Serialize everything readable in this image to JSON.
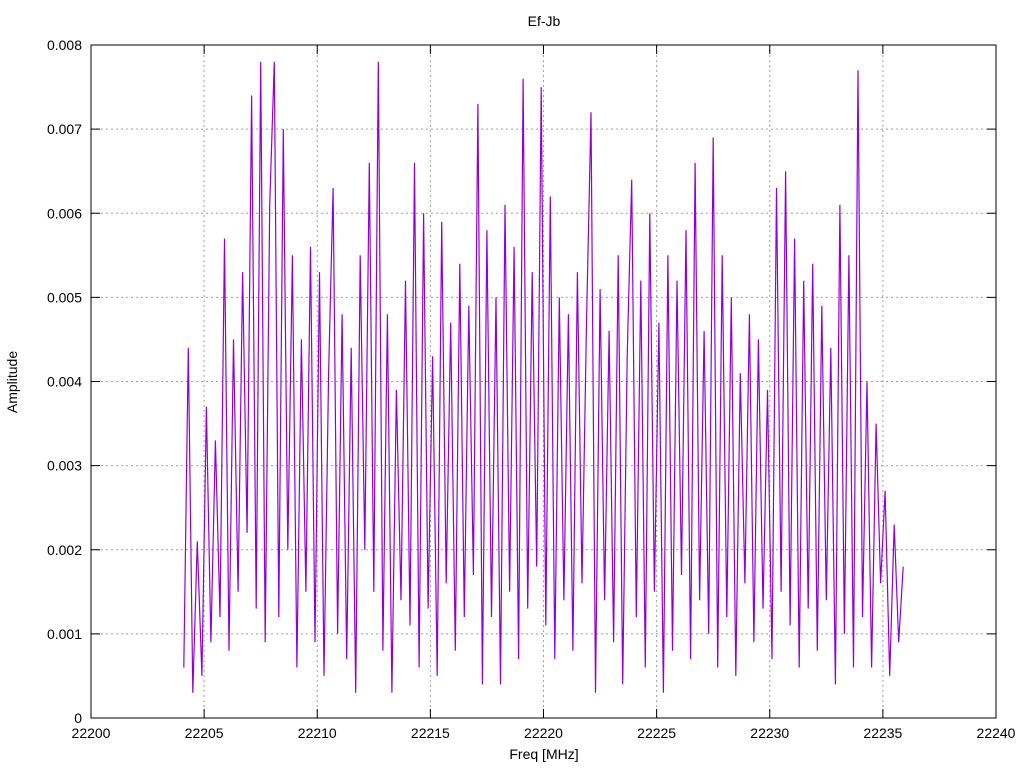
{
  "chart_data": {
    "type": "line",
    "title": "Ef-Jb",
    "xlabel": "Freq [MHz]",
    "ylabel": "Amplitude",
    "xlim": [
      22200,
      22240
    ],
    "ylim": [
      0,
      0.008
    ],
    "xticks": [
      "22200",
      "22205",
      "22210",
      "22215",
      "22220",
      "22225",
      "22230",
      "22235",
      "22240"
    ],
    "yticks": [
      "0",
      "0.001",
      "0.002",
      "0.003",
      "0.004",
      "0.005",
      "0.006",
      "0.007",
      "0.008"
    ],
    "grid": true,
    "legend": "none",
    "series": [
      {
        "name": "Ef-Jb",
        "color": "#9400d3",
        "x_start": 22204.1,
        "x_step": 0.2,
        "y": [
          0.0006,
          0.0044,
          0.0003,
          0.0021,
          0.0005,
          0.0037,
          0.0009,
          0.0033,
          0.0012,
          0.0057,
          0.0008,
          0.0045,
          0.0015,
          0.0053,
          0.0022,
          0.0074,
          0.0013,
          0.0078,
          0.0009,
          0.0061,
          0.0078,
          0.0012,
          0.007,
          0.002,
          0.0055,
          0.0006,
          0.0045,
          0.0015,
          0.0056,
          0.0009,
          0.0053,
          0.0005,
          0.0041,
          0.0063,
          0.001,
          0.0048,
          0.0007,
          0.0044,
          0.0003,
          0.0055,
          0.002,
          0.0066,
          0.0015,
          0.0078,
          0.0008,
          0.0048,
          0.0003,
          0.0039,
          0.0014,
          0.0052,
          0.0011,
          0.0066,
          0.0006,
          0.006,
          0.0013,
          0.0043,
          0.0005,
          0.0059,
          0.0016,
          0.0047,
          0.0008,
          0.0054,
          0.0012,
          0.0049,
          0.0017,
          0.0073,
          0.0004,
          0.0058,
          0.0012,
          0.005,
          0.0004,
          0.0061,
          0.0015,
          0.0056,
          0.0007,
          0.0076,
          0.0013,
          0.0053,
          0.0018,
          0.0075,
          0.0011,
          0.0062,
          0.0007,
          0.005,
          0.0014,
          0.0048,
          0.0008,
          0.0053,
          0.0016,
          0.0047,
          0.0072,
          0.0003,
          0.0051,
          0.0014,
          0.0046,
          0.0009,
          0.0055,
          0.0004,
          0.0043,
          0.0064,
          0.0012,
          0.0052,
          0.0006,
          0.006,
          0.0015,
          0.0047,
          0.0003,
          0.0055,
          0.0008,
          0.0052,
          0.0017,
          0.0058,
          0.0007,
          0.0066,
          0.0014,
          0.0046,
          0.001,
          0.0069,
          0.0006,
          0.0055,
          0.0012,
          0.005,
          0.0005,
          0.0041,
          0.0016,
          0.0048,
          0.0009,
          0.0045,
          0.0013,
          0.0039,
          0.0007,
          0.0063,
          0.0015,
          0.0065,
          0.0011,
          0.0057,
          0.0006,
          0.0052,
          0.0013,
          0.0054,
          0.0008,
          0.0049,
          0.0014,
          0.0044,
          0.0004,
          0.0061,
          0.001,
          0.0055,
          0.0006,
          0.0077,
          0.0012,
          0.004,
          0.0006,
          0.0035,
          0.0016,
          0.0027,
          0.0005,
          0.0023,
          0.0009,
          0.0018
        ]
      }
    ]
  }
}
